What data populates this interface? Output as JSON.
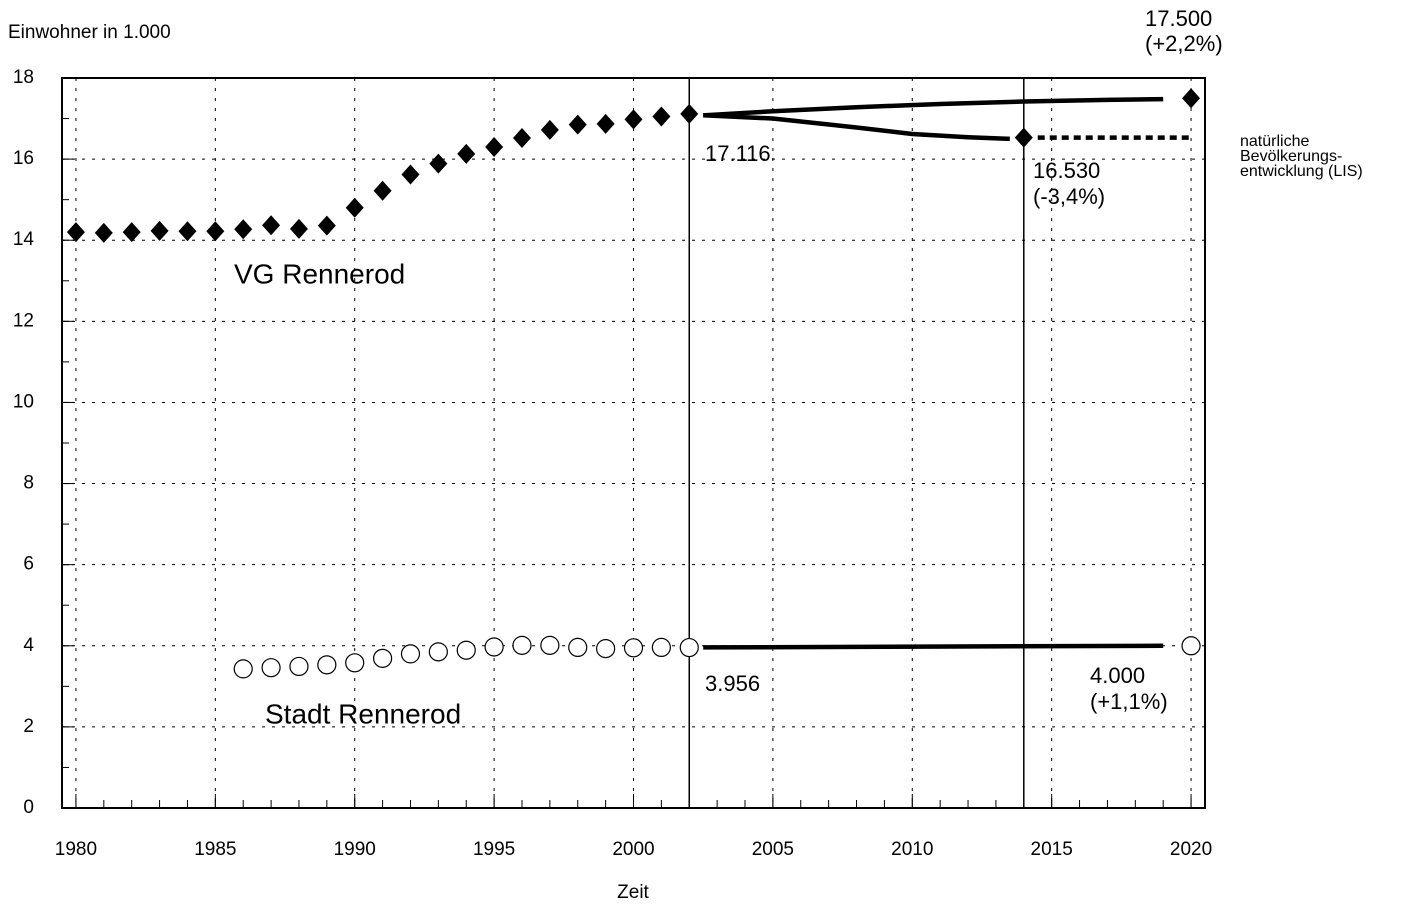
{
  "chart_data": {
    "type": "scatter",
    "y_label": "Einwohner in 1.000",
    "x_label": "Zeit",
    "xlim": [
      1979.5,
      2020.5
    ],
    "ylim": [
      0,
      18
    ],
    "xticks": [
      1980,
      1985,
      1990,
      1995,
      2000,
      2005,
      2010,
      2015,
      2020
    ],
    "yticks": [
      0,
      2,
      4,
      6,
      8,
      10,
      12,
      14,
      16,
      18
    ],
    "x_minor_step": 1,
    "y_minor_step": 1,
    "grid": true,
    "reference_lines_x": [
      2002,
      2014
    ],
    "series": [
      {
        "name": "VG Rennerod",
        "marker": "diamond",
        "color": "#000000",
        "x": [
          1980,
          1981,
          1982,
          1983,
          1984,
          1985,
          1986,
          1987,
          1988,
          1989,
          1990,
          1991,
          1992,
          1993,
          1994,
          1995,
          1996,
          1997,
          1998,
          1999,
          2000,
          2001,
          2002,
          2014,
          2020
        ],
        "values": [
          14.2,
          14.18,
          14.2,
          14.23,
          14.22,
          14.22,
          14.27,
          14.37,
          14.28,
          14.36,
          14.8,
          15.22,
          15.62,
          15.89,
          16.13,
          16.3,
          16.52,
          16.72,
          16.85,
          16.87,
          16.98,
          17.05,
          17.116,
          16.53,
          17.5
        ]
      },
      {
        "name": "Stadt Rennerod",
        "marker": "circle",
        "color": "#000000",
        "x": [
          1986,
          1987,
          1988,
          1989,
          1990,
          1991,
          1992,
          1993,
          1994,
          1995,
          1996,
          1997,
          1998,
          1999,
          2000,
          2001,
          2002,
          2020
        ],
        "values": [
          3.43,
          3.46,
          3.49,
          3.53,
          3.58,
          3.69,
          3.8,
          3.85,
          3.89,
          3.97,
          4.01,
          4.01,
          3.96,
          3.93,
          3.95,
          3.96,
          3.956,
          4.0
        ]
      }
    ],
    "projections": [
      {
        "style": "solid",
        "x": [
          2002.5,
          2005,
          2008,
          2011,
          2014,
          2017,
          2019
        ],
        "values": [
          17.08,
          17.18,
          17.28,
          17.36,
          17.42,
          17.46,
          17.48
        ]
      },
      {
        "style": "solid",
        "x": [
          2002.5,
          2005,
          2008,
          2010,
          2012,
          2013.5
        ],
        "values": [
          17.08,
          17.0,
          16.78,
          16.62,
          16.54,
          16.5
        ]
      },
      {
        "style": "dotted",
        "x": [
          2014.5,
          2020
        ],
        "values": [
          16.53,
          16.53
        ]
      },
      {
        "style": "solid",
        "x": [
          2002.5,
          2019
        ],
        "values": [
          3.96,
          4.0
        ]
      }
    ],
    "annotations": [
      {
        "lines": [
          "17.116"
        ]
      },
      {
        "lines": [
          "16.530",
          "(-3,4%)"
        ]
      },
      {
        "lines": [
          "17.500",
          "(+2,2%)"
        ]
      },
      {
        "lines": [
          "3.956"
        ]
      },
      {
        "lines": [
          "4.000",
          "(+1,1%)"
        ]
      },
      {
        "lines": [
          "natürliche",
          "Bevölkerungs-",
          "entwicklung (LIS)"
        ]
      }
    ]
  }
}
